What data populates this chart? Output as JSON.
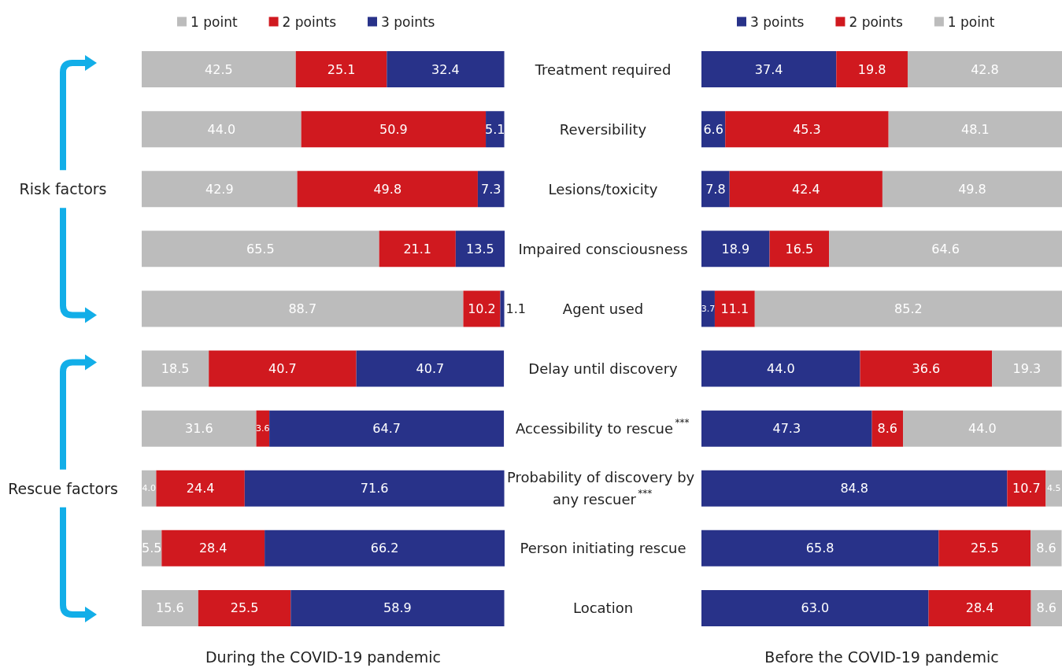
{
  "chart_data": [
    {
      "type": "bar",
      "orientation": "horizontal",
      "stacked": true,
      "legend": "top",
      "tick_labels": "y",
      "xlabel": "During the COVID-19 pandemic",
      "annotations": [
        "Risk factors",
        "Rescue factors"
      ],
      "categories": [
        "Treatment required",
        "Reversibility",
        "Lesions/toxicity",
        "Impaired consciousness",
        "Agent used",
        "Delay until discovery",
        "Accessibility to rescue$^{***}$",
        "Probability of discovery by any rescuer$^{***}$",
        "Person initiating rescue",
        "Location"
      ],
      "series": [
        {
          "name": "1 point",
          "color": "#bcbcbc",
          "values": [
            42.5,
            44.0,
            42.9,
            65.5,
            88.7,
            18.5,
            31.6,
            4.0,
            5.5,
            15.6
          ],
          "value_labels": [
            "42.5",
            "44.0",
            "42.9",
            "65.5",
            "88.7",
            "18.5",
            "31.6",
            "4.0",
            "5.5",
            "15.6"
          ]
        },
        {
          "name": "2 points",
          "color": "#d0191f",
          "values": [
            25.1,
            50.9,
            49.8,
            21.1,
            10.2,
            40.7,
            3.6,
            24.4,
            28.4,
            25.5
          ],
          "value_labels": [
            "25.1",
            "50.9",
            "49.8",
            "21.1",
            "10.2",
            "40.7",
            "3.6",
            "24.4",
            "28.4",
            "25.5"
          ]
        },
        {
          "name": "3 points",
          "color": "#283289",
          "values": [
            32.4,
            5.1,
            7.3,
            13.5,
            1.1,
            40.7,
            64.7,
            71.6,
            66.2,
            58.9
          ],
          "value_labels": [
            "32.4",
            "5.1",
            "7.3",
            "13.5",
            "1.1",
            "40.7",
            "64.7",
            "71.6",
            "66.2",
            "58.9"
          ]
        }
      ]
    },
    {
      "type": "bar",
      "orientation": "horizontal",
      "stacked": true,
      "legend": "top",
      "tick_labels": false,
      "xlabel": "Before the COVID-19 pandemic",
      "categories": [
        "Treatment required",
        "Reversibility",
        "Lesions/toxicity",
        "Impaired consciousness",
        "Agent used",
        "Delay until discovery",
        "Accessibility to rescue$^{***}$",
        "Probability of discovery by any rescuer$^{***}$",
        "Person initiating rescue",
        "Location"
      ],
      "series": [
        {
          "name": "3 points",
          "color": "#283289",
          "values": [
            37.4,
            6.6,
            7.8,
            18.9,
            3.7,
            44.0,
            47.3,
            84.8,
            65.8,
            63.0
          ],
          "value_labels": [
            "37.4",
            "6.6",
            "7.8",
            "18.9",
            "3.7",
            "44.0",
            "47.3",
            "84.8",
            "65.8",
            "63.0"
          ]
        },
        {
          "name": "2 points",
          "color": "#d0191f",
          "values": [
            19.8,
            45.3,
            42.4,
            16.5,
            11.1,
            36.6,
            8.6,
            10.7,
            25.5,
            28.4
          ],
          "value_labels": [
            "19.8",
            "45.3",
            "42.4",
            "16.5",
            "11.1",
            "36.6",
            "8.6",
            "10.7",
            "25.5",
            "28.4"
          ]
        },
        {
          "name": "1 point",
          "color": "#bcbcbc",
          "values": [
            42.8,
            48.1,
            49.8,
            64.6,
            85.2,
            19.3,
            44.0,
            4.5,
            8.6,
            8.6
          ],
          "value_labels": [
            "42.8",
            "48.1",
            "49.8",
            "64.6",
            "85.2",
            "19.3",
            "44.0",
            "4.5",
            "8.6",
            "8.6"
          ]
        }
      ]
    }
  ]
}
